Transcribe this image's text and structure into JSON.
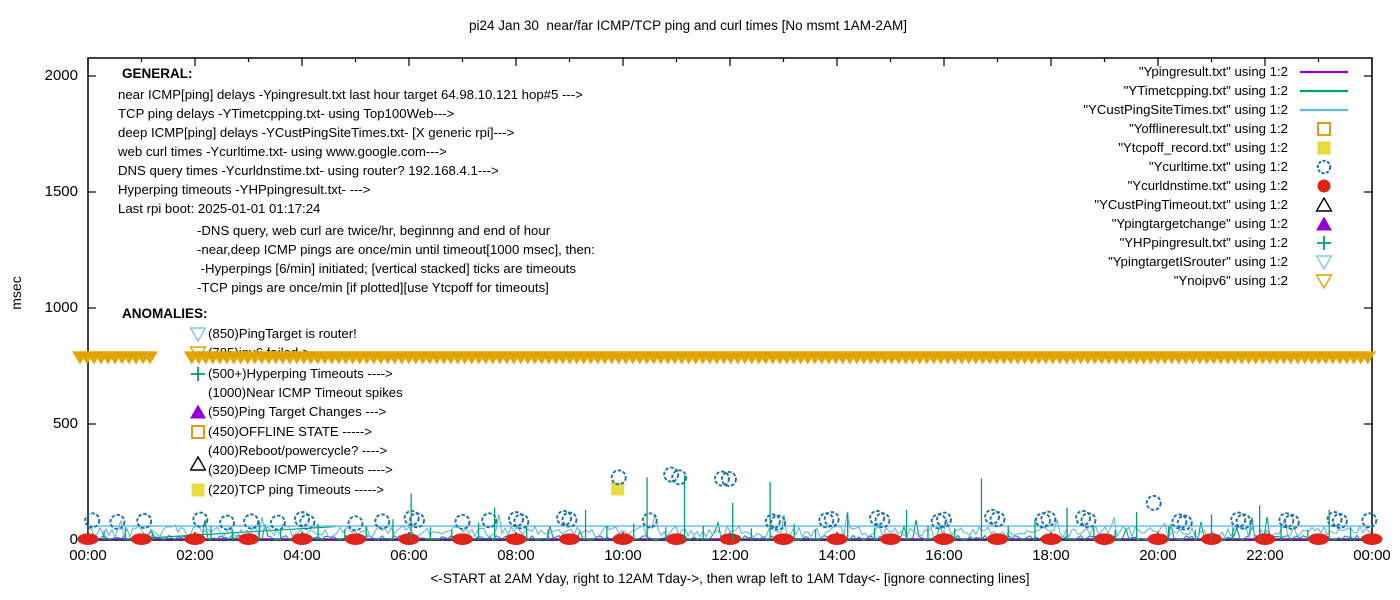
{
  "title": "pi24 Jan 30  near/far ICMP/TCP ping and curl times [No msmt 1AM-2AM]",
  "axes": {
    "ylabel": "msec",
    "xlabel": "<-START at 2AM Yday, right to 12AM Tday->, then wrap left to 1AM Tday<- [ignore connecting lines]",
    "y_ticks": [
      0,
      500,
      1000,
      1500,
      2000
    ],
    "x_tick_labels": [
      "00:00",
      "02:00",
      "04:00",
      "06:00",
      "08:00",
      "10:00",
      "12:00",
      "14:00",
      "16:00",
      "18:00",
      "20:00",
      "22:00",
      "00:00"
    ],
    "ylim": [
      0,
      2000
    ],
    "x_hours": [
      0,
      24
    ],
    "grid": "off"
  },
  "colors": {
    "purple": "#9400D3",
    "teal": "#009E73",
    "lightblue": "#5FB8E8",
    "paleblue": "#7EC9EC",
    "blue": "#1B6FAE",
    "red": "#E02318",
    "orange": "#DF9000",
    "gold": "#E2A400",
    "yellow": "#E8DC3F",
    "black": "#000000"
  },
  "legend": {
    "position": "top-right",
    "items": [
      {
        "label": "\"Ypingresult.txt\" using 1:2",
        "marker": "line",
        "color": "#9400D3"
      },
      {
        "label": "\"YTimetcpping.txt\" using 1:2",
        "marker": "line",
        "color": "#009E73"
      },
      {
        "label": "\"YCustPingSiteTimes.txt\" using 1:2",
        "marker": "line",
        "color": "#5FB8E8"
      },
      {
        "label": "\"Yofflineresult.txt\" using 1:2",
        "marker": "open-square",
        "color": "#DF9000"
      },
      {
        "label": "\"Ytcpoff_record.txt\" using 1:2",
        "marker": "filled-square",
        "color": "#E8DC3F"
      },
      {
        "label": "\"Ycurltime.txt\" using 1:2",
        "marker": "open-circle",
        "color": "#1B6FAE"
      },
      {
        "label": "\"Ycurldnstime.txt\" using 1:2",
        "marker": "filled-circle",
        "color": "#E02318"
      },
      {
        "label": "\"YCustPingTimeout.txt\" using 1:2",
        "marker": "open-up-triangle",
        "color": "#000000"
      },
      {
        "label": "\"Ypingtargetchange\" using 1:2",
        "marker": "filled-up-triangle",
        "color": "#9400D3"
      },
      {
        "label": "\"YHPpingresult.txt\" using 1:2",
        "marker": "plus",
        "color": "#009E73"
      },
      {
        "label": "\"YpingtargetISrouter\" using 1:2",
        "marker": "open-down-triangle",
        "color": "#7EC9EC"
      },
      {
        "label": "\"Ynoipv6\" using 1:2",
        "marker": "open-down-triangle",
        "color": "#E2A400"
      }
    ]
  },
  "annotations": {
    "general_title": "GENERAL:",
    "general_lines": [
      "near ICMP[ping] delays -Ypingresult.txt last hour target 64.98.10.121 hop#5 --->",
      "TCP ping delays -YTimetcpping.txt- using Top100Web--->",
      "deep ICMP[ping] delays -YCustPingSiteTimes.txt- [X generic rpi]--->",
      "web curl times -Ycurltime.txt- using www.google.com--->",
      "DNS query times -Ycurldnstime.txt- using router? 192.168.4.1--->",
      "Hyperping timeouts -YHPpingresult.txt- --->",
      "Last rpi boot: 2025-01-01 01:17:24"
    ],
    "general_indented": [
      "-DNS query, web curl are twice/hr, beginnng and end of hour",
      "-near,deep ICMP pings are once/min until timeout[1000 msec], then:",
      " -Hyperpings [6/min] initiated; [vertical stacked] ticks are timeouts",
      "-TCP pings are once/min [if plotted][use Ytcpoff for timeouts]"
    ],
    "anomalies_title": "ANOMALIES:",
    "anomalies": [
      {
        "marker": "open-down-triangle",
        "color": "#7EC9EC",
        "text": "(850)PingTarget is router!"
      },
      {
        "marker": "open-down-triangle",
        "color": "#E2A400",
        "text": "(785)ipv6 failed->",
        "note": "mostly hidden behind gold band"
      },
      {
        "marker": "plus",
        "color": "#009E73",
        "text": "(500+)Hyperping Timeouts ---->"
      },
      {
        "marker": "none",
        "color": "",
        "text": "(1000)Near ICMP Timeout spikes"
      },
      {
        "marker": "filled-up-triangle",
        "color": "#9400D3",
        "text": "(550)Ping Target Changes --->"
      },
      {
        "marker": "open-square",
        "color": "#DF9000",
        "text": "(450)OFFLINE STATE ----->"
      },
      {
        "marker": "none",
        "color": "",
        "text": "(400)Reboot/powercycle? ---->"
      },
      {
        "marker": "open-up-triangle",
        "color": "#000000",
        "text": "(320)Deep ICMP Timeouts ---->"
      },
      {
        "marker": "filled-square",
        "color": "#E8DC3F",
        "text": "(220)TCP ping Timeouts ----->"
      }
    ]
  },
  "chart_data": {
    "type": "line",
    "title": "pi24 Jan 30  near/far ICMP/TCP ping and curl times [No msmt 1AM-2AM]",
    "xlabel": "<-START at 2AM Yday, right to 12AM Tday->, then wrap left to 1AM Tday<- [ignore connecting lines]",
    "ylabel": "msec",
    "ylim": [
      0,
      2000
    ],
    "x_unit": "hours_0_to_24",
    "legend_position": "top-right",
    "series": [
      {
        "name": "Ypingresult.txt",
        "type": "flat-line",
        "color": "#9400D3",
        "value_msec": 4
      },
      {
        "name": "YTimetcpping.txt",
        "type": "noisy-line",
        "color": "#009E73",
        "baseline_msec": 8,
        "jitter_msec": 12,
        "seed": 11,
        "connecting_segment_hours_msec": [
          [
            1.08,
            8
          ],
          [
            4.64,
            58
          ]
        ]
      },
      {
        "name": "YCustPingSiteTimes.txt",
        "type": "noisy-line",
        "color": "#5FB8E8",
        "baseline_msec": 35,
        "jitter_msec": 24,
        "seed": 42,
        "flat_line_msec": 60
      },
      {
        "name": "Yofflineresult.txt",
        "type": "points",
        "marker": "open-square",
        "color": "#DF9000",
        "points": []
      },
      {
        "name": "Ytcpoff_record.txt",
        "type": "points",
        "marker": "filled-square",
        "color": "#E8DC3F",
        "points": [
          [
            9.9,
            220
          ]
        ]
      },
      {
        "name": "Ycurltime.txt",
        "type": "points",
        "marker": "open-circle",
        "color": "#1B6FAE",
        "points": [
          [
            0.08,
            85
          ],
          [
            0.55,
            78
          ],
          [
            1.05,
            82
          ],
          [
            2.1,
            88
          ],
          [
            2.6,
            75
          ],
          [
            3.05,
            80
          ],
          [
            3.55,
            75
          ],
          [
            4.0,
            90
          ],
          [
            4.1,
            78
          ],
          [
            5.0,
            72
          ],
          [
            5.5,
            80
          ],
          [
            6.05,
            95
          ],
          [
            6.15,
            85
          ],
          [
            7.0,
            78
          ],
          [
            7.5,
            85
          ],
          [
            8.0,
            90
          ],
          [
            8.1,
            80
          ],
          [
            8.9,
            95
          ],
          [
            9.0,
            88
          ],
          [
            9.92,
            270
          ],
          [
            10.5,
            85
          ],
          [
            10.9,
            282
          ],
          [
            11.05,
            270
          ],
          [
            11.85,
            265
          ],
          [
            11.98,
            263
          ],
          [
            12.8,
            80
          ],
          [
            12.9,
            75
          ],
          [
            13.8,
            85
          ],
          [
            13.9,
            90
          ],
          [
            14.75,
            95
          ],
          [
            14.85,
            85
          ],
          [
            15.9,
            80
          ],
          [
            16.0,
            88
          ],
          [
            16.9,
            100
          ],
          [
            17.0,
            90
          ],
          [
            17.85,
            85
          ],
          [
            17.95,
            92
          ],
          [
            18.6,
            95
          ],
          [
            18.7,
            85
          ],
          [
            19.92,
            160
          ],
          [
            20.4,
            80
          ],
          [
            20.5,
            75
          ],
          [
            21.5,
            88
          ],
          [
            21.6,
            80
          ],
          [
            22.4,
            85
          ],
          [
            22.5,
            78
          ],
          [
            23.3,
            90
          ],
          [
            23.4,
            82
          ],
          [
            23.95,
            85
          ]
        ]
      },
      {
        "name": "Ycurldnstime.txt",
        "type": "points",
        "marker": "filled-circle",
        "color": "#E02318",
        "points": [
          [
            0,
            8
          ],
          [
            1,
            8
          ],
          [
            2,
            8
          ],
          [
            3,
            8
          ],
          [
            4,
            8
          ],
          [
            5,
            8
          ],
          [
            6,
            8
          ],
          [
            7,
            8
          ],
          [
            8,
            8
          ],
          [
            9,
            8
          ],
          [
            10,
            8
          ],
          [
            11,
            8
          ],
          [
            12,
            8
          ],
          [
            13,
            8
          ],
          [
            14,
            8
          ],
          [
            15,
            8
          ],
          [
            16,
            8
          ],
          [
            17,
            8
          ],
          [
            18,
            8
          ],
          [
            19,
            8
          ],
          [
            20,
            8
          ],
          [
            21,
            8
          ],
          [
            22,
            8
          ],
          [
            23,
            8
          ],
          [
            24,
            8
          ]
        ]
      },
      {
        "name": "YCustPingTimeout.txt",
        "type": "points",
        "marker": "open-up-triangle",
        "color": "#000000",
        "points": []
      },
      {
        "name": "Ypingtargetchange",
        "type": "points",
        "marker": "filled-up-triangle",
        "color": "#9400D3",
        "points": []
      },
      {
        "name": "YHPpingresult.txt",
        "type": "impulses",
        "color": "#009E73",
        "points": [
          [
            0.3,
            40
          ],
          [
            0.7,
            55
          ],
          [
            1.2,
            35
          ],
          [
            2.3,
            60
          ],
          [
            2.7,
            45
          ],
          [
            3.2,
            80
          ],
          [
            3.6,
            50
          ],
          [
            4.3,
            70
          ],
          [
            4.8,
            45
          ],
          [
            5.2,
            60
          ],
          [
            5.7,
            90
          ],
          [
            6.04,
            200
          ],
          [
            6.4,
            55
          ],
          [
            6.8,
            45
          ],
          [
            7.3,
            75
          ],
          [
            7.6,
            140
          ],
          [
            8.2,
            60
          ],
          [
            8.6,
            45
          ],
          [
            9.3,
            130
          ],
          [
            9.7,
            60
          ],
          [
            10.2,
            70
          ],
          [
            10.45,
            270
          ],
          [
            10.8,
            55
          ],
          [
            11.15,
            280
          ],
          [
            11.5,
            60
          ],
          [
            12.05,
            160
          ],
          [
            12.4,
            50
          ],
          [
            12.75,
            250
          ],
          [
            13.2,
            70
          ],
          [
            13.6,
            45
          ],
          [
            14.2,
            120
          ],
          [
            14.7,
            55
          ],
          [
            15.3,
            130
          ],
          [
            15.7,
            60
          ],
          [
            16.2,
            50
          ],
          [
            16.7,
            265
          ],
          [
            17.2,
            60
          ],
          [
            17.7,
            90
          ],
          [
            18.3,
            140
          ],
          [
            18.8,
            55
          ],
          [
            19.2,
            45
          ],
          [
            19.6,
            120
          ],
          [
            20.2,
            60
          ],
          [
            20.7,
            45
          ],
          [
            21.0,
            110
          ],
          [
            21.4,
            55
          ],
          [
            21.9,
            150
          ],
          [
            22.3,
            60
          ],
          [
            22.8,
            45
          ],
          [
            23.2,
            130
          ],
          [
            23.6,
            55
          ]
        ]
      },
      {
        "name": "YpingtargetISrouter",
        "type": "points",
        "marker": "open-down-triangle",
        "color": "#7EC9EC",
        "points": []
      },
      {
        "name": "Ynoipv6",
        "type": "band",
        "marker": "open-down-triangle",
        "color": "#E2A400",
        "value_msec": 785,
        "segments_hours": [
          [
            -0.15,
            1.2
          ],
          [
            1.94,
            24.02
          ]
        ],
        "gap_reason": "No msmt 1AM-2AM"
      }
    ]
  }
}
